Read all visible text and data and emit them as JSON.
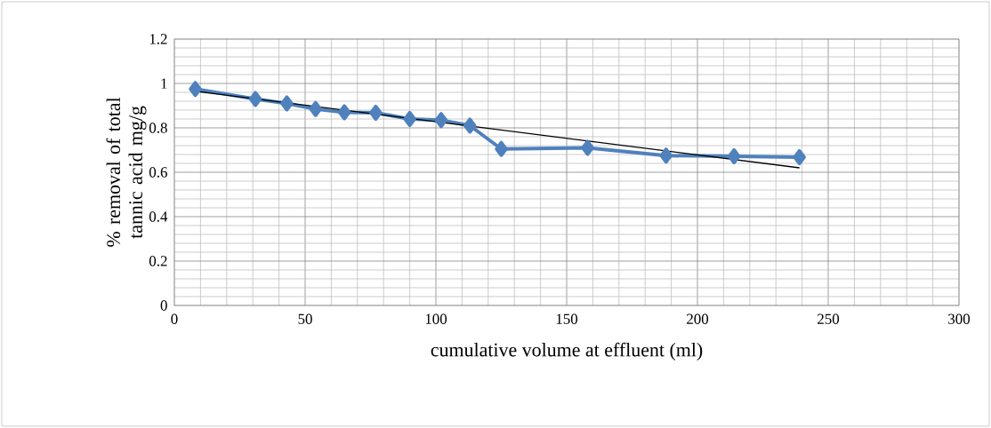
{
  "chart_data": {
    "type": "line",
    "xlabel": "cumulative volume at effluent (ml)",
    "ylabel": "% removal of total tannic acid mg/g",
    "xlim": [
      0,
      300
    ],
    "xticks": [
      0,
      50,
      100,
      150,
      200,
      250,
      300
    ],
    "ylim": [
      0,
      1.2
    ],
    "yticks": [
      0,
      0.2,
      0.4,
      0.6,
      0.8,
      1,
      1.2
    ],
    "grid": true,
    "series": [
      {
        "color": "#4f81bd",
        "marker": "diamond",
        "line_style": "solid",
        "x": [
          8,
          31,
          43,
          54,
          65,
          77,
          90,
          102,
          113,
          125,
          158,
          188,
          214,
          239
        ],
        "values": [
          0.975,
          0.93,
          0.91,
          0.885,
          0.87,
          0.868,
          0.84,
          0.835,
          0.81,
          0.705,
          0.71,
          0.675,
          0.672,
          0.668
        ]
      },
      {
        "color": "#000000",
        "marker": "none",
        "line_style": "solid",
        "x": [
          8,
          239
        ],
        "values": [
          0.965,
          0.62
        ]
      }
    ]
  }
}
